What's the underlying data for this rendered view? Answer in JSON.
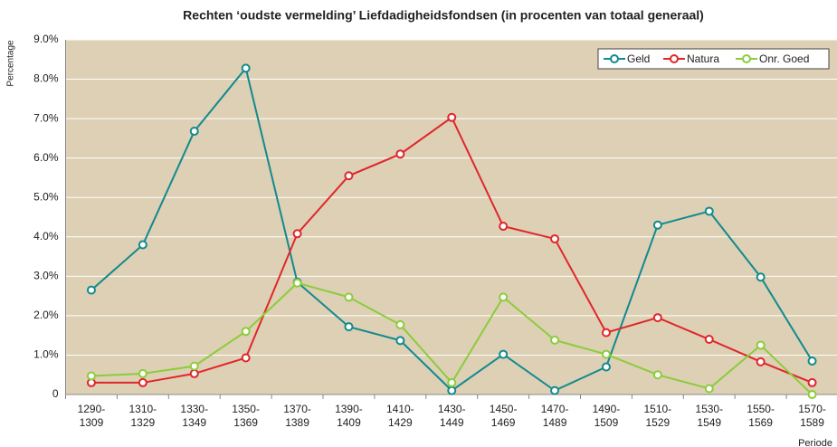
{
  "chart_data": {
    "type": "line",
    "title": "Rechten ‘oudste vermelding’ Liefdadigheidsfondsen (in procenten van totaal generaal)",
    "ylabel": "Percentage",
    "xlabel": "Periode",
    "categories": [
      "1290-\n1309",
      "1310-\n1329",
      "1330-\n1349",
      "1350-\n1369",
      "1370-\n1389",
      "1390-\n1409",
      "1410-\n1429",
      "1430-\n1449",
      "1450-\n1469",
      "1470-\n1489",
      "1490-\n1509",
      "1510-\n1529",
      "1530-\n1549",
      "1550-\n1569",
      "1570-\n1589"
    ],
    "series": [
      {
        "name": "Geld",
        "color": "#128a8e",
        "values": [
          2.65,
          3.8,
          6.68,
          8.28,
          2.85,
          1.72,
          1.37,
          0.1,
          1.02,
          0.1,
          0.7,
          4.3,
          4.65,
          2.98,
          0.85
        ]
      },
      {
        "name": "Natura",
        "color": "#e0262b",
        "values": [
          0.3,
          0.3,
          0.53,
          0.93,
          4.08,
          5.55,
          6.1,
          7.03,
          4.27,
          3.95,
          1.57,
          1.95,
          1.4,
          0.83,
          0.3
        ]
      },
      {
        "name": "Onr. Goed",
        "color": "#8ccc3c",
        "values": [
          0.47,
          0.53,
          0.72,
          1.6,
          2.83,
          2.47,
          1.77,
          0.3,
          2.47,
          1.38,
          1.02,
          0.5,
          0.15,
          1.25,
          0
        ]
      }
    ],
    "ylim": [
      0,
      9
    ],
    "yticks": [
      0,
      {
        "value": 1,
        "label": "1.0%"
      },
      {
        "value": 2,
        "label": "2.0%"
      },
      {
        "value": 3,
        "label": "3.0%"
      },
      {
        "value": 4,
        "label": "4.0%"
      },
      {
        "value": 5,
        "label": "5.0%"
      },
      {
        "value": 6,
        "label": "6.0%"
      },
      {
        "value": 7,
        "label": "7.0%"
      },
      {
        "value": 8,
        "label": "8.0%"
      },
      {
        "value": 9,
        "label": "9.0%"
      }
    ],
    "grid": true,
    "legend": "top-right",
    "background": "#ddd0b4"
  }
}
